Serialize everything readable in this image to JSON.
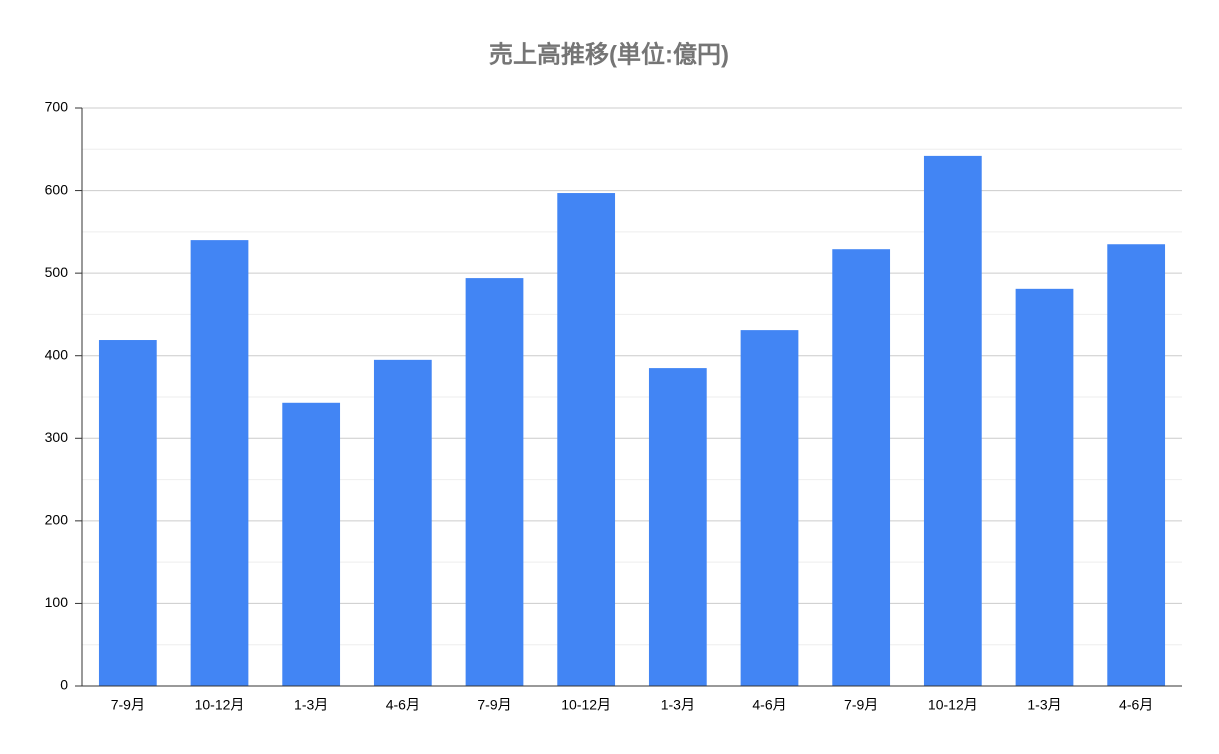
{
  "chart_data": {
    "type": "bar",
    "title": "売上高推移(単位:億円)",
    "categories": [
      "7-9月",
      "10-12月",
      "1-3月",
      "4-6月",
      "7-9月",
      "10-12月",
      "1-3月",
      "4-6月",
      "7-9月",
      "10-12月",
      "1-3月",
      "4-6月"
    ],
    "values": [
      419,
      540,
      343,
      395,
      494,
      597,
      385,
      431,
      529,
      642,
      481,
      535
    ],
    "color": "#4285f4",
    "ylim": [
      0,
      700
    ],
    "yticks": [
      0,
      100,
      200,
      300,
      400,
      500,
      600,
      700
    ],
    "grid": true,
    "minor_grid": true
  }
}
